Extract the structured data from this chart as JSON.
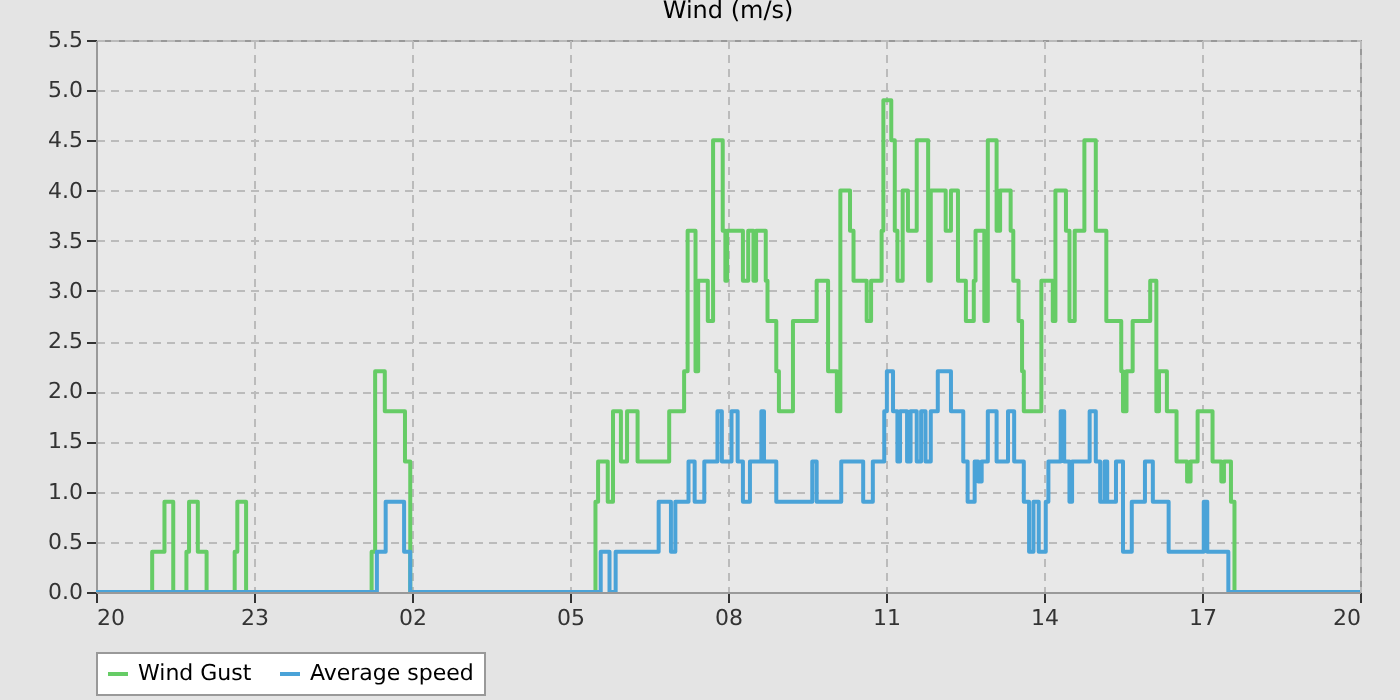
{
  "chart_data": {
    "type": "step",
    "title": "Wind (m/s)",
    "xlim": [
      "--01-01T20:00",
      "--01-02T20:00"
    ],
    "xticks": [
      {
        "value": "--01-01T20:00",
        "label": "20"
      },
      {
        "value": "--01-01T23:00",
        "label": "23"
      },
      {
        "value": "--01-02T02:00",
        "label": "02"
      },
      {
        "value": "--01-02T05:00",
        "label": "05"
      },
      {
        "value": "--01-02T08:00",
        "label": "08"
      },
      {
        "value": "--01-02T11:00",
        "label": "11"
      },
      {
        "value": "--01-02T14:00",
        "label": "14"
      },
      {
        "value": "--01-02T17:00",
        "label": "17"
      },
      {
        "value": "--01-02T20:00",
        "label": "20"
      }
    ],
    "ylim": [
      0,
      5.5
    ],
    "yticks": [
      {
        "value": 0,
        "label": "0.0"
      },
      0.5,
      {
        "value": 1,
        "label": "1.0"
      },
      1.5,
      {
        "value": 2,
        "label": "2.0"
      },
      2.5,
      {
        "value": 3,
        "label": "3.0"
      },
      3.5,
      {
        "value": 4,
        "label": "4.0"
      },
      4.5,
      {
        "value": 5,
        "label": "5.0"
      },
      5.5
    ],
    "grid": true,
    "legend": "bottom",
    "line_style": "solid",
    "series": [
      {
        "name": "Wind Gust",
        "color": "#66cc66",
        "x": [
          "--01-01T20:00",
          "--01-01T21:04",
          "--01-01T21:18",
          "--01-01T21:28",
          "--01-01T21:43",
          "--01-01T21:46",
          "--01-01T21:56",
          "--01-01T22:06",
          "--01-01T22:38",
          "--01-01T22:41",
          "--01-01T22:51",
          "--01-02T01:14",
          "--01-02T01:18",
          "--01-02T01:29",
          "--01-02T01:52",
          "--01-02T01:58",
          "--01-02T05:29",
          "--01-02T05:32",
          "--01-02T05:43",
          "--01-02T05:49",
          "--01-02T05:58",
          "--01-02T06:05",
          "--01-02T06:17",
          "--01-02T06:53",
          "--01-02T07:10",
          "--01-02T07:14",
          "--01-02T07:23",
          "--01-02T07:26",
          "--01-02T07:37",
          "--01-02T07:43",
          "--01-02T07:54",
          "--01-02T07:57",
          "--01-02T07:59",
          "--01-02T08:17",
          "--01-02T08:23",
          "--01-02T08:29",
          "--01-02T08:32",
          "--01-02T08:43",
          "--01-02T08:45",
          "--01-02T08:55",
          "--01-02T08:58",
          "--01-02T09:14",
          "--01-02T09:41",
          "--01-02T09:54",
          "--01-02T10:04",
          "--01-02T10:08",
          "--01-02T10:19",
          "--01-02T10:23",
          "--01-02T10:38",
          "--01-02T10:43",
          "--01-02T10:55",
          "--01-02T10:57",
          "--01-02T11:06",
          "--01-02T11:10",
          "--01-02T11:13",
          "--01-02T11:19",
          "--01-02T11:25",
          "--01-02T11:35",
          "--01-02T11:48",
          "--01-02T11:51",
          "--01-02T12:08",
          "--01-02T12:14",
          "--01-02T12:22",
          "--01-02T12:31",
          "--01-02T12:40",
          "--01-02T12:42",
          "--01-02T12:52",
          "--01-02T12:56",
          "--01-02T13:06",
          "--01-02T13:10",
          "--01-02T13:22",
          "--01-02T13:25",
          "--01-02T13:31",
          "--01-02T13:35",
          "--01-02T13:37",
          "--01-02T13:57",
          "--01-02T14:10",
          "--01-02T14:13",
          "--01-02T14:25",
          "--01-02T14:29",
          "--01-02T14:35",
          "--01-02T14:46",
          "--01-02T14:59",
          "--01-02T15:11",
          "--01-02T15:28",
          "--01-02T15:30",
          "--01-02T15:34",
          "--01-02T15:41",
          "--01-02T16:01",
          "--01-02T16:08",
          "--01-02T16:11",
          "--01-02T16:20",
          "--01-02T16:31",
          "--01-02T16:43",
          "--01-02T16:47",
          "--01-02T16:55",
          "--01-02T17:12",
          "--01-02T17:22",
          "--01-02T17:25",
          "--01-02T17:33",
          "--01-02T17:37",
          "--01-02T20:00"
        ],
        "values": [
          0,
          0.4,
          0.9,
          0,
          0.4,
          0.9,
          0.4,
          0,
          0.4,
          0.9,
          0,
          0.4,
          2.2,
          1.8,
          1.3,
          0,
          0.9,
          1.3,
          0.9,
          1.8,
          1.3,
          1.8,
          1.3,
          1.8,
          2.2,
          3.6,
          2.2,
          3.1,
          2.7,
          4.5,
          3.6,
          3.1,
          3.6,
          3.1,
          3.6,
          3.1,
          3.6,
          3.1,
          2.7,
          2.2,
          1.8,
          2.7,
          3.1,
          2.2,
          1.8,
          4.0,
          3.6,
          3.1,
          2.7,
          3.1,
          3.6,
          4.9,
          4.5,
          3.6,
          3.1,
          4.0,
          3.6,
          4.5,
          3.1,
          4.0,
          3.6,
          4.0,
          3.1,
          2.7,
          3.1,
          3.6,
          2.7,
          4.5,
          3.6,
          4.0,
          3.6,
          3.1,
          2.7,
          2.2,
          1.8,
          3.1,
          2.7,
          4.0,
          3.6,
          2.7,
          3.6,
          4.5,
          3.6,
          2.7,
          2.2,
          1.8,
          2.2,
          2.7,
          3.1,
          1.8,
          2.2,
          1.8,
          1.3,
          1.1,
          1.3,
          1.8,
          1.3,
          1.1,
          1.3,
          0.9,
          0,
          0
        ]
      },
      {
        "name": "Average speed",
        "color": "#4aa3d8",
        "x": [
          "--01-01T20:00",
          "--01-02T01:20",
          "--01-02T01:30",
          "--01-02T01:51",
          "--01-02T01:58",
          "--01-02T05:35",
          "--01-02T05:45",
          "--01-02T05:52",
          "--01-02T06:41",
          "--01-02T06:55",
          "--01-02T07:00",
          "--01-02T07:15",
          "--01-02T07:22",
          "--01-02T07:33",
          "--01-02T07:48",
          "--01-02T07:53",
          "--01-02T08:04",
          "--01-02T08:11",
          "--01-02T08:17",
          "--01-02T08:25",
          "--01-02T08:38",
          "--01-02T08:41",
          "--01-02T08:55",
          "--01-02T09:36",
          "--01-02T09:41",
          "--01-02T10:09",
          "--01-02T10:34",
          "--01-02T10:45",
          "--01-02T10:58",
          "--01-02T11:01",
          "--01-02T11:08",
          "--01-02T11:13",
          "--01-02T11:16",
          "--01-02T11:24",
          "--01-02T11:28",
          "--01-02T11:35",
          "--01-02T11:40",
          "--01-02T11:45",
          "--01-02T11:51",
          "--01-02T11:59",
          "--01-02T12:14",
          "--01-02T12:28",
          "--01-02T12:33",
          "--01-02T12:41",
          "--01-02T12:45",
          "--01-02T12:49",
          "--01-02T12:56",
          "--01-02T13:06",
          "--01-02T13:19",
          "--01-02T13:26",
          "--01-02T13:37",
          "--01-02T13:43",
          "--01-02T13:48",
          "--01-02T13:54",
          "--01-02T14:02",
          "--01-02T14:05",
          "--01-02T14:19",
          "--01-02T14:23",
          "--01-02T14:29",
          "--01-02T14:32",
          "--01-02T14:52",
          "--01-02T14:59",
          "--01-02T15:04",
          "--01-02T15:09",
          "--01-02T15:12",
          "--01-02T15:22",
          "--01-02T15:30",
          "--01-02T15:40",
          "--01-02T15:55",
          "--01-02T16:04",
          "--01-02T16:22",
          "--01-02T17:02",
          "--01-02T17:06",
          "--01-02T17:30",
          "--01-02T20:00"
        ],
        "values": [
          0,
          0.4,
          0.9,
          0.4,
          0,
          0.4,
          0,
          0.4,
          0.9,
          0.4,
          0.9,
          1.3,
          0.9,
          1.3,
          1.8,
          1.3,
          1.8,
          1.3,
          0.9,
          1.3,
          1.8,
          1.3,
          0.9,
          1.3,
          0.9,
          1.3,
          0.9,
          1.3,
          1.8,
          2.2,
          1.8,
          1.3,
          1.8,
          1.3,
          1.8,
          1.3,
          1.8,
          1.3,
          1.8,
          2.2,
          1.8,
          1.3,
          0.9,
          1.3,
          1.1,
          1.3,
          1.8,
          1.3,
          1.8,
          1.3,
          0.9,
          0.4,
          0.9,
          0.4,
          0.9,
          1.3,
          1.8,
          1.3,
          0.9,
          1.3,
          1.8,
          1.3,
          0.9,
          1.3,
          0.9,
          1.3,
          0.4,
          0.9,
          1.3,
          0.9,
          0.4,
          0.9,
          0.4,
          0,
          0
        ]
      }
    ]
  }
}
